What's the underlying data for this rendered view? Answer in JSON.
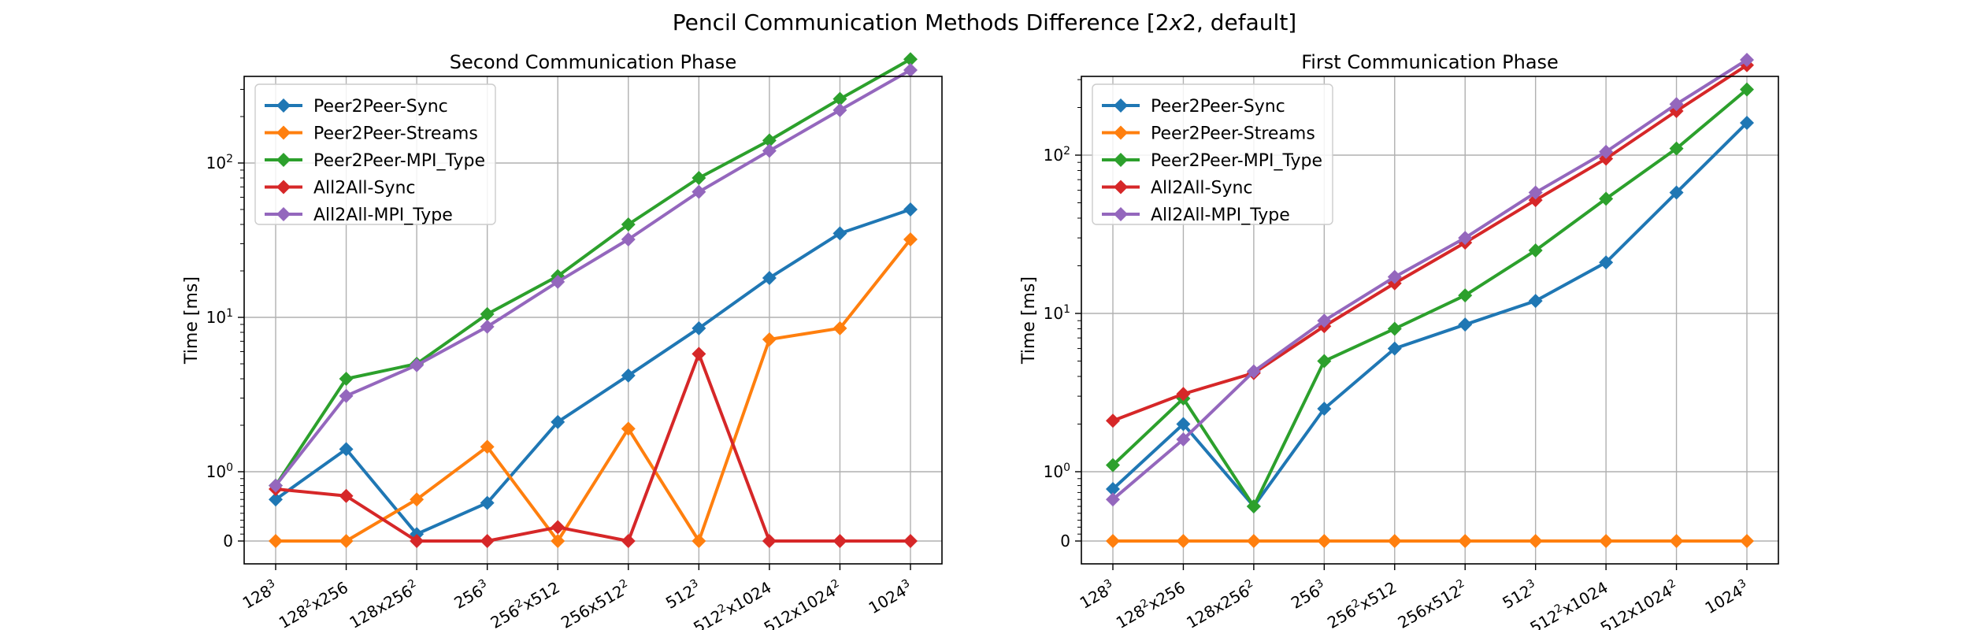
{
  "figure_title": "Pencil Communication Methods Difference [2x2, default]",
  "colors": {
    "Peer2Peer-Sync": "#1f77b4",
    "Peer2Peer-Streams": "#ff7f0e",
    "Peer2Peer-MPI_Type": "#2ca02c",
    "All2All-Sync": "#d62728",
    "All2All-MPI_Type": "#9467bd"
  },
  "chart_data": [
    {
      "type": "line",
      "title": "Second Communication Phase",
      "xlabel": "",
      "ylabel": "Time [ms]",
      "yscale": "symlog",
      "ylim": [
        0,
        800
      ],
      "yticks": [
        "0",
        "10^0",
        "10^1",
        "10^2"
      ],
      "grid": true,
      "legend": "top-left",
      "categories": [
        "128^3",
        "128^2x256",
        "128x256^2",
        "256^3",
        "256^2x512",
        "256x512^2",
        "512^3",
        "512^2x1024",
        "512x1024^2",
        "1024^3"
      ],
      "series": [
        {
          "name": "Peer2Peer-Sync",
          "values": [
            0.6,
            1.4,
            0.1,
            0.55,
            2.1,
            4.2,
            8.5,
            18,
            35,
            50
          ]
        },
        {
          "name": "Peer2Peer-Streams",
          "values": [
            0,
            0,
            0.6,
            1.45,
            0,
            1.9,
            0,
            7.2,
            8.5,
            32
          ]
        },
        {
          "name": "Peer2Peer-MPI_Type",
          "values": [
            0.8,
            4.0,
            5.0,
            10.5,
            18.5,
            40,
            80,
            140,
            260,
            470
          ]
        },
        {
          "name": "All2All-Sync",
          "values": [
            0.75,
            0.65,
            0,
            0,
            0.2,
            0,
            5.8,
            0,
            0,
            0
          ]
        },
        {
          "name": "All2All-MPI_Type",
          "values": [
            0.8,
            3.1,
            4.9,
            8.7,
            17,
            32,
            65,
            120,
            220,
            400
          ]
        }
      ]
    },
    {
      "type": "line",
      "title": "First Communication Phase",
      "xlabel": "",
      "ylabel": "Time [ms]",
      "yscale": "symlog",
      "ylim": [
        0,
        500
      ],
      "yticks": [
        "0",
        "10^0",
        "10^1",
        "10^2"
      ],
      "grid": true,
      "legend": "top-left",
      "categories": [
        "128^3",
        "128^2x256",
        "128x256^2",
        "256^3",
        "256^2x512",
        "256x512^2",
        "512^3",
        "512^2x1024",
        "512x1024^2",
        "1024^3"
      ],
      "series": [
        {
          "name": "Peer2Peer-Sync",
          "values": [
            0.75,
            2.0,
            0.5,
            2.5,
            6.0,
            8.5,
            12,
            21,
            58,
            160
          ]
        },
        {
          "name": "Peer2Peer-Streams",
          "values": [
            0,
            0,
            0,
            0,
            0,
            0,
            0,
            0,
            0,
            0
          ]
        },
        {
          "name": "Peer2Peer-MPI_Type",
          "values": [
            1.1,
            2.9,
            0.5,
            5.0,
            8.0,
            13,
            25,
            53,
            110,
            260
          ]
        },
        {
          "name": "All2All-Sync",
          "values": [
            2.1,
            3.1,
            4.2,
            8.3,
            15.5,
            28,
            52,
            95,
            190,
            370
          ]
        },
        {
          "name": "All2All-MPI_Type",
          "values": [
            0.6,
            1.6,
            4.3,
            9.0,
            17,
            30,
            58,
            105,
            210,
            400
          ]
        }
      ]
    }
  ]
}
